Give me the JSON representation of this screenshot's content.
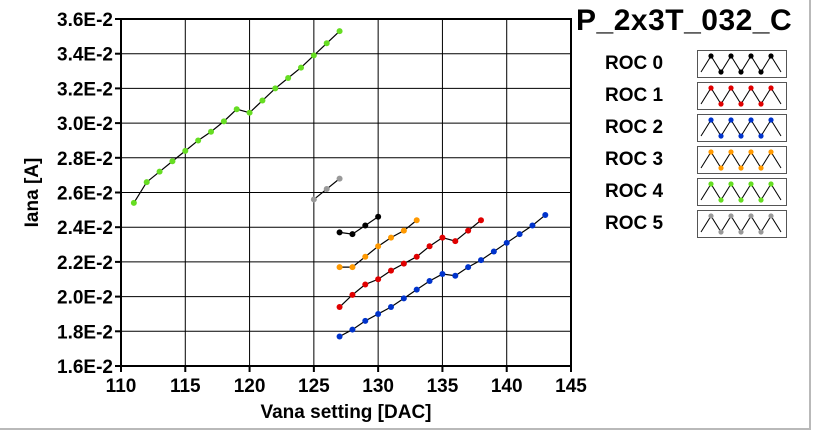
{
  "title": "P_2x3T_032_C",
  "chart_data": {
    "type": "line",
    "xlabel": "Vana setting [DAC]",
    "ylabel": "Iana [A]",
    "xlim": [
      110,
      145
    ],
    "ylim": [
      0.016,
      0.036
    ],
    "x_ticks": [
      "110",
      "115",
      "120",
      "125",
      "130",
      "135",
      "140",
      "145"
    ],
    "y_ticks": [
      "1.6E-2",
      "1.8E-2",
      "2.0E-2",
      "2.2E-2",
      "2.4E-2",
      "2.6E-2",
      "2.8E-2",
      "3.0E-2",
      "3.2E-2",
      "3.4E-2",
      "3.6E-2"
    ],
    "grid": true,
    "legend_position": "right",
    "series": [
      {
        "name": "ROC 0",
        "color": "#000000",
        "x": [
          127,
          128,
          129,
          130
        ],
        "y": [
          0.0237,
          0.0236,
          0.0241,
          0.0246
        ]
      },
      {
        "name": "ROC 1",
        "color": "#e00000",
        "x": [
          127,
          128,
          129,
          130,
          131,
          132,
          133,
          134,
          135,
          136,
          137,
          138
        ],
        "y": [
          0.0194,
          0.0201,
          0.0207,
          0.021,
          0.0215,
          0.0219,
          0.0223,
          0.0229,
          0.0234,
          0.0232,
          0.0238,
          0.0244
        ]
      },
      {
        "name": "ROC 2",
        "color": "#0033cc",
        "x": [
          127,
          128,
          129,
          130,
          131,
          132,
          133,
          134,
          135,
          136,
          137,
          138,
          139,
          140,
          141,
          142,
          143
        ],
        "y": [
          0.0177,
          0.0181,
          0.0186,
          0.019,
          0.0194,
          0.0199,
          0.0204,
          0.0209,
          0.0213,
          0.0212,
          0.0217,
          0.0221,
          0.0226,
          0.0231,
          0.0236,
          0.0241,
          0.0247
        ]
      },
      {
        "name": "ROC 3",
        "color": "#ff9900",
        "x": [
          127,
          128,
          129,
          130,
          131,
          132,
          133
        ],
        "y": [
          0.0217,
          0.0217,
          0.0223,
          0.0229,
          0.0234,
          0.0238,
          0.0244
        ]
      },
      {
        "name": "ROC 4",
        "color": "#66dd22",
        "x": [
          111,
          112,
          113,
          114,
          115,
          116,
          117,
          118,
          119,
          120,
          121,
          122,
          123,
          124,
          125,
          126,
          127
        ],
        "y": [
          0.0254,
          0.0266,
          0.0272,
          0.0278,
          0.0284,
          0.029,
          0.0295,
          0.0301,
          0.0308,
          0.0306,
          0.0313,
          0.032,
          0.0326,
          0.0332,
          0.0339,
          0.0346,
          0.0353
        ]
      },
      {
        "name": "ROC 5",
        "color": "#999999",
        "x": [
          125,
          126,
          127
        ],
        "y": [
          0.0256,
          0.0262,
          0.0268
        ]
      }
    ]
  }
}
